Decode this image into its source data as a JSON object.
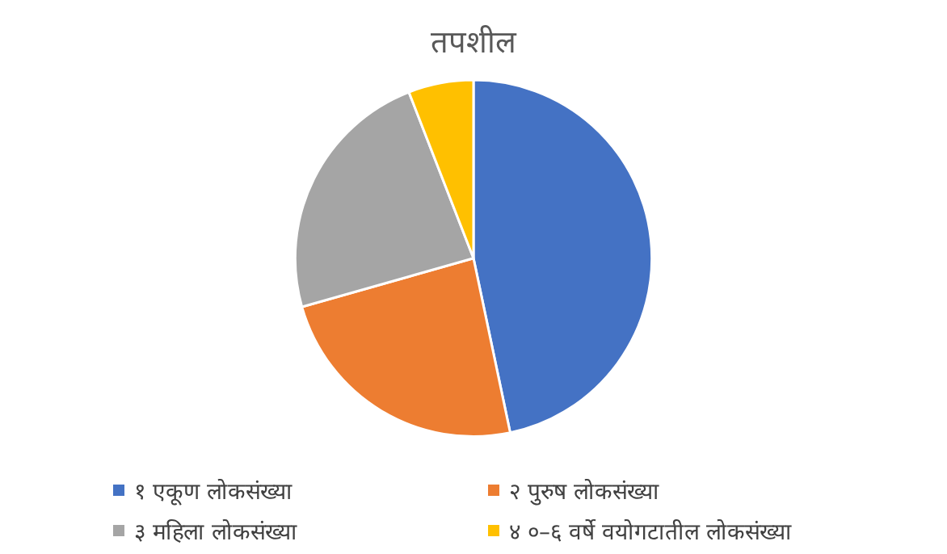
{
  "chart_data": {
    "type": "pie",
    "title": "तपशील",
    "categories": [
      "१ एकूण लोकसंख्या",
      "२ पुरुष लोकसंख्या",
      "३ महिला लोकसंख्या",
      "४ ०–६ वर्षे वयोगटातील लोकसंख्या"
    ],
    "values": [
      46.7,
      23.9,
      23.5,
      5.9
    ],
    "colors": [
      "#4472c4",
      "#ed7d31",
      "#a5a5a5",
      "#ffc000"
    ],
    "legend": "bottom"
  }
}
